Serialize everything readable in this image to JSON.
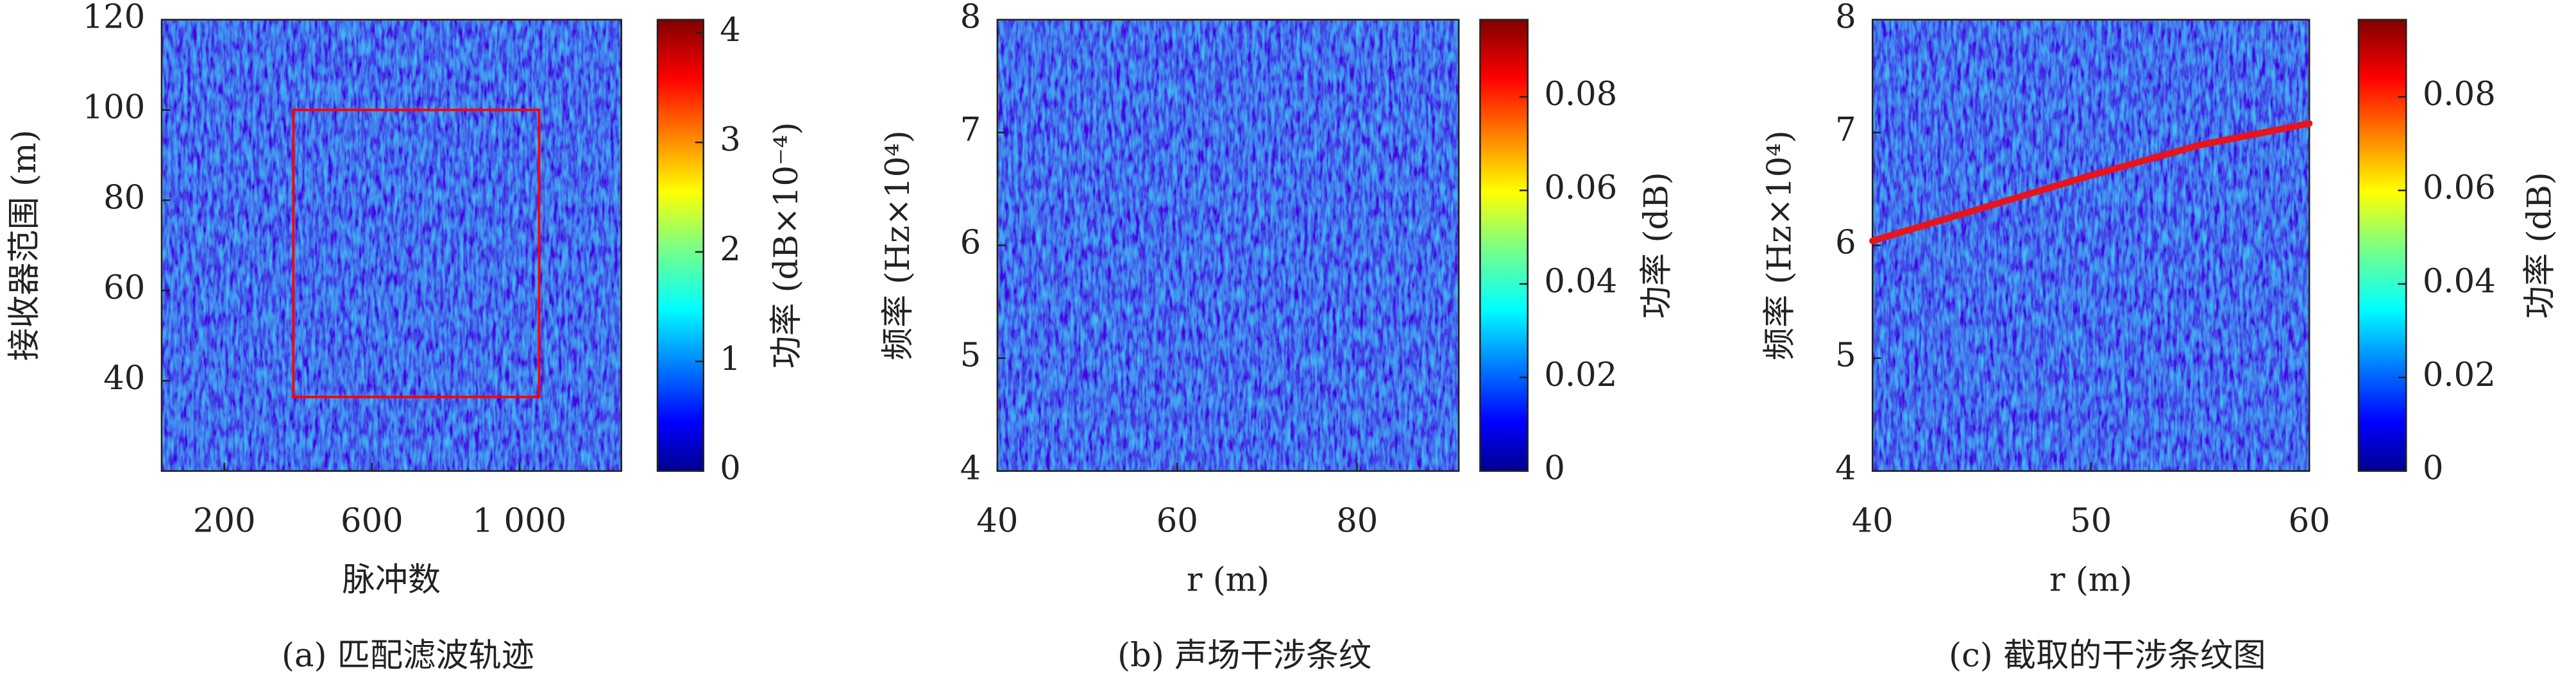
{
  "chart_data": [
    {
      "type": "heatmap",
      "caption": "(a) 匹配滤波轨迹",
      "xlabel": "脉冲数",
      "ylabel": "接收器范围 (m)",
      "xlim": [
        30,
        1276
      ],
      "xticks": [
        200,
        600,
        {
          "value": 1000,
          "label": "1 000"
        }
      ],
      "ylim": [
        20,
        120
      ],
      "yticks": [
        40,
        60,
        80,
        100,
        120
      ],
      "colormap": "jet",
      "clim": [
        0,
        4.12
      ],
      "cticks": [
        0,
        1,
        2,
        3,
        4
      ],
      "colorbar_label": "功率 (dB×10⁻⁴)",
      "annotation_box": {
        "x": [
          387,
          1053
        ],
        "y": [
          36.4,
          100
        ],
        "color": "#ff0000"
      }
    },
    {
      "type": "heatmap",
      "caption": "(b) 声场干涉条纹",
      "xlabel": "r (m)",
      "ylabel": "频率 (Hz×10⁴)",
      "xlim": [
        40,
        91.3
      ],
      "xticks": [
        40,
        60,
        80
      ],
      "ylim": [
        4,
        8
      ],
      "yticks": [
        4,
        5,
        6,
        7,
        8
      ],
      "colormap": "jet",
      "clim": [
        0,
        0.0965
      ],
      "cticks": [
        0,
        0.02,
        0.04,
        0.06,
        0.08
      ],
      "colorbar_label": "功率 (dB)"
    },
    {
      "type": "heatmap",
      "caption": "(c) 截取的干涉条纹图",
      "xlabel": "r (m)",
      "ylabel": "频率 (Hz×10⁴)",
      "xlim": [
        40,
        60
      ],
      "xticks": [
        40,
        50,
        60
      ],
      "ylim": [
        4,
        8
      ],
      "yticks": [
        4,
        5,
        6,
        7,
        8
      ],
      "colormap": "jet",
      "clim": [
        0,
        0.0965
      ],
      "cticks": [
        0,
        0.02,
        0.04,
        0.06,
        0.08
      ],
      "colorbar_label": "功率 (dB)",
      "series": [
        {
          "color": "#e8141c",
          "x": [
            40,
            45,
            50,
            55,
            60
          ],
          "values": [
            6.04,
            6.33,
            6.62,
            6.89,
            7.08
          ]
        }
      ]
    }
  ]
}
